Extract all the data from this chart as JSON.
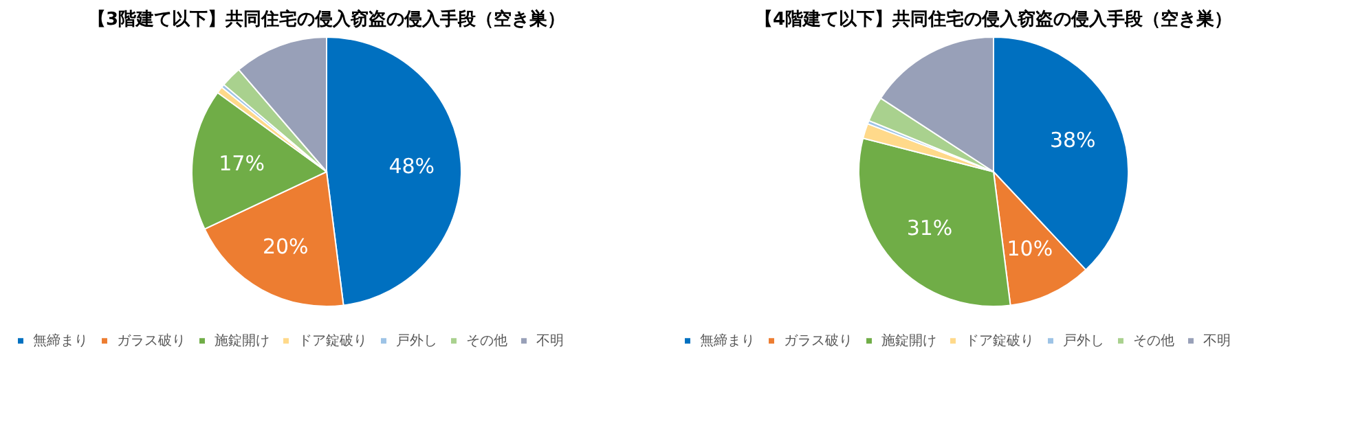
{
  "chart_data": [
    {
      "type": "pie",
      "title": "【3階建て以下】共同住宅の侵入窃盗の侵入手段（空き巣）",
      "categories": [
        "無締まり",
        "ガラス破り",
        "施錠開け",
        "ドア錠破り",
        "戸外し",
        "その他",
        "不明"
      ],
      "values": [
        48,
        20,
        17,
        0.8,
        0.4,
        2.5,
        11.3
      ],
      "colors": [
        "#0070c0",
        "#ed7d31",
        "#70ad47",
        "#ffd98a",
        "#9dc3e6",
        "#a9d18e",
        "#98a0b8"
      ],
      "value_labels": [
        "48%",
        "20%",
        "17%",
        null,
        null,
        null,
        null
      ],
      "legend": "bottom"
    },
    {
      "type": "pie",
      "title": "【4階建て以下】共同住宅の侵入窃盗の侵入手段（空き巣）",
      "categories": [
        "無締まり",
        "ガラス破り",
        "施錠開け",
        "ドア錠破り",
        "戸外し",
        "その他",
        "不明"
      ],
      "values": [
        38,
        10,
        31,
        1.8,
        0.4,
        3,
        15.8
      ],
      "colors": [
        "#0070c0",
        "#ed7d31",
        "#70ad47",
        "#ffd98a",
        "#9dc3e6",
        "#a9d18e",
        "#98a0b8"
      ],
      "value_labels": [
        "38%",
        "10%",
        "31%",
        null,
        null,
        null,
        null
      ],
      "legend": "bottom"
    }
  ]
}
